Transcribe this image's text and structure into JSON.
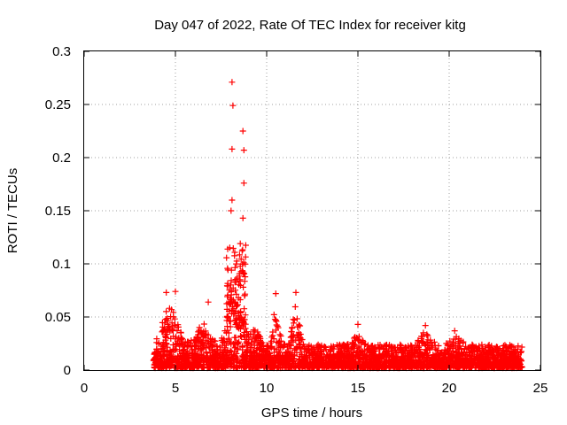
{
  "chart_data": {
    "type": "scatter",
    "title": "Day 047 of 2022, Rate Of TEC Index for receiver kitg",
    "xlabel": "GPS time / hours",
    "ylabel": "ROTI / TECUs",
    "xlim": [
      0,
      25
    ],
    "ylim": [
      0,
      0.3
    ],
    "x_ticks": [
      "0",
      "5",
      "10",
      "15",
      "20",
      "25"
    ],
    "y_ticks": [
      "0",
      "0.05",
      "0.1",
      "0.15",
      "0.2",
      "0.25",
      "0.3"
    ],
    "grid": true,
    "marker": "+",
    "color": "#ff0000",
    "x_range_hours": [
      3.8,
      24.0
    ],
    "representative_max_points": [
      {
        "x": 8.1,
        "y": 0.271
      },
      {
        "x": 8.15,
        "y": 0.249
      },
      {
        "x": 8.7,
        "y": 0.225
      },
      {
        "x": 8.1,
        "y": 0.208
      },
      {
        "x": 8.75,
        "y": 0.207
      },
      {
        "x": 8.75,
        "y": 0.176
      },
      {
        "x": 8.1,
        "y": 0.16
      },
      {
        "x": 8.05,
        "y": 0.15
      },
      {
        "x": 8.7,
        "y": 0.143
      },
      {
        "x": 4.5,
        "y": 0.073
      },
      {
        "x": 5.0,
        "y": 0.074
      },
      {
        "x": 6.8,
        "y": 0.064
      },
      {
        "x": 10.5,
        "y": 0.072
      },
      {
        "x": 11.6,
        "y": 0.073
      },
      {
        "x": 15.0,
        "y": 0.043
      },
      {
        "x": 18.7,
        "y": 0.042
      },
      {
        "x": 20.3,
        "y": 0.037
      }
    ]
  }
}
